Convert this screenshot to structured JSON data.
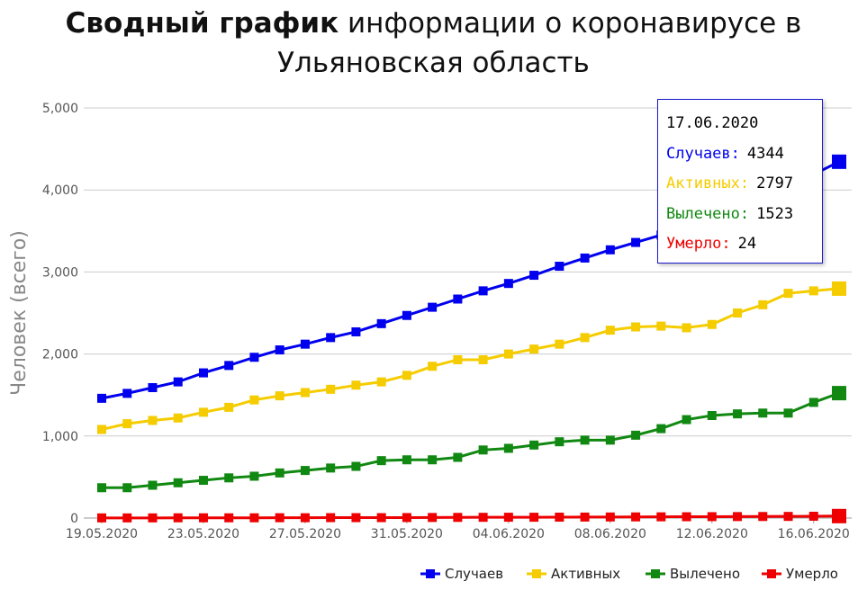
{
  "title": {
    "bold": "Сводный график",
    "rest": "информации о коронавирусе в",
    "line2": "Ульяновская область"
  },
  "chart_data": {
    "type": "line",
    "ylabel": "Человек (всего)",
    "ylim": [
      0,
      5000
    ],
    "y_ticks": [
      "0",
      "1,000",
      "2,000",
      "3,000",
      "4,000",
      "5,000"
    ],
    "y_tick_values": [
      0,
      1000,
      2000,
      3000,
      4000,
      5000
    ],
    "x_ticks": [
      "19.05.2020",
      "23.05.2020",
      "27.05.2020",
      "31.05.2020",
      "04.06.2020",
      "08.06.2020",
      "12.06.2020",
      "16.06.2020"
    ],
    "x": [
      "19.05.2020",
      "20.05.2020",
      "21.05.2020",
      "22.05.2020",
      "23.05.2020",
      "24.05.2020",
      "25.05.2020",
      "26.05.2020",
      "27.05.2020",
      "28.05.2020",
      "29.05.2020",
      "30.05.2020",
      "31.05.2020",
      "01.06.2020",
      "02.06.2020",
      "03.06.2020",
      "04.06.2020",
      "05.06.2020",
      "06.06.2020",
      "07.06.2020",
      "08.06.2020",
      "09.06.2020",
      "10.06.2020",
      "11.06.2020",
      "12.06.2020",
      "13.06.2020",
      "14.06.2020",
      "15.06.2020",
      "16.06.2020",
      "17.06.2020"
    ],
    "grid": true,
    "legend_position": "bottom-right",
    "series": [
      {
        "name": "Случаев",
        "color": "#0000ee",
        "values": [
          1460,
          1520,
          1590,
          1660,
          1770,
          1860,
          1960,
          2050,
          2120,
          2200,
          2270,
          2370,
          2470,
          2570,
          2670,
          2770,
          2860,
          2960,
          3070,
          3170,
          3270,
          3360,
          3450,
          3550,
          3650,
          3750,
          3900,
          4040,
          4190,
          4344
        ]
      },
      {
        "name": "Активных",
        "color": "#f5cc00",
        "values": [
          1080,
          1150,
          1190,
          1220,
          1290,
          1350,
          1440,
          1490,
          1530,
          1570,
          1620,
          1660,
          1740,
          1850,
          1930,
          1930,
          2000,
          2060,
          2120,
          2200,
          2290,
          2330,
          2340,
          2320,
          2360,
          2500,
          2600,
          2740,
          2770,
          2797
        ]
      },
      {
        "name": "Вылечено",
        "color": "#118811",
        "values": [
          370,
          370,
          400,
          430,
          460,
          490,
          510,
          550,
          580,
          610,
          630,
          700,
          710,
          710,
          740,
          830,
          850,
          890,
          930,
          950,
          950,
          1010,
          1090,
          1200,
          1250,
          1270,
          1280,
          1280,
          1410,
          1523
        ]
      },
      {
        "name": "Умерло",
        "color": "#ee0000",
        "values": [
          2,
          2,
          2,
          3,
          3,
          3,
          3,
          4,
          4,
          5,
          5,
          5,
          6,
          7,
          8,
          9,
          10,
          10,
          11,
          12,
          13,
          14,
          15,
          16,
          17,
          18,
          19,
          20,
          22,
          24
        ]
      }
    ],
    "tooltip": {
      "date": "17.06.2020",
      "rows": [
        {
          "label": "Случаев:",
          "value": "4344",
          "color": "#0000ee"
        },
        {
          "label": "Активных:",
          "value": "2797",
          "color": "#f5cc00"
        },
        {
          "label": "Вылечено:",
          "value": "1523",
          "color": "#118811"
        },
        {
          "label": "Умерло:",
          "value": "24",
          "color": "#ee0000"
        }
      ]
    }
  }
}
